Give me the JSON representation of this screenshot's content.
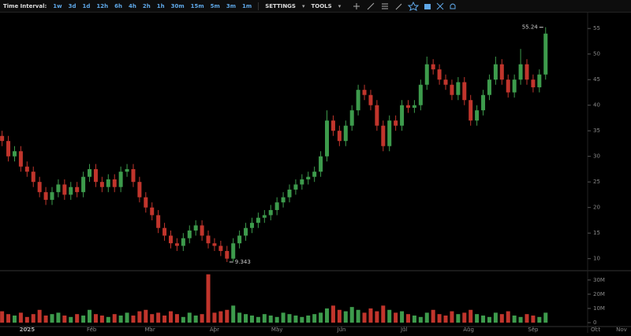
{
  "toolbar": {
    "label": "Time Interval:",
    "intervals": [
      "1w",
      "3d",
      "1d",
      "12h",
      "6h",
      "4h",
      "2h",
      "1h",
      "30m",
      "15m",
      "5m",
      "3m",
      "1m"
    ],
    "settings": "SETTINGS",
    "tools": "TOOLS"
  },
  "chart_data": {
    "type": "candlestick",
    "x": [
      -12,
      -9,
      -6,
      -3,
      0,
      3,
      6,
      9,
      12,
      15,
      18,
      21,
      24,
      27,
      30,
      33,
      36,
      39,
      42,
      45,
      48,
      51,
      54,
      57,
      60,
      63,
      66,
      69,
      72,
      75,
      78,
      81,
      84,
      87,
      90,
      93,
      96,
      99,
      102,
      105,
      108,
      111,
      114,
      117,
      120,
      123,
      126,
      129,
      132,
      135,
      138,
      141,
      144,
      147,
      150,
      153,
      156,
      159,
      162,
      165,
      168,
      171,
      174,
      177,
      180,
      183,
      186,
      189,
      192,
      195,
      198,
      201,
      204,
      207,
      210,
      213,
      216,
      219,
      222,
      225,
      228,
      231,
      234,
      237,
      240,
      243,
      246,
      249
    ],
    "open": [
      34,
      33,
      30,
      31,
      28,
      27,
      25,
      23,
      21.5,
      23,
      24.5,
      22.5,
      24,
      23,
      26,
      27.5,
      25,
      24,
      25.5,
      24,
      27,
      27.5,
      25,
      22,
      20,
      18.5,
      16,
      14.5,
      13,
      12.5,
      14,
      15.5,
      16.5,
      14.5,
      13,
      12.5,
      11.5,
      10,
      13,
      14.5,
      16,
      17,
      18,
      18.5,
      19.5,
      21,
      22,
      23.5,
      24.5,
      25.5,
      26,
      27,
      30,
      37,
      35,
      33,
      36,
      39,
      43,
      42,
      40,
      36,
      32,
      37,
      36,
      40,
      39.5,
      40,
      44,
      48,
      47,
      45,
      44,
      42,
      44.5,
      41,
      37,
      39,
      42,
      45,
      48,
      45,
      42.5,
      45,
      48,
      45,
      43.5,
      46
    ],
    "high": [
      35,
      34,
      32,
      32,
      29,
      28,
      26,
      24,
      24,
      25.5,
      25.5,
      25,
      25,
      27,
      28.5,
      28.5,
      26,
      26.5,
      26.5,
      28,
      28.5,
      28.5,
      26,
      23,
      21,
      19.5,
      17,
      15.5,
      14,
      15,
      16.5,
      17.5,
      17.5,
      15.5,
      14,
      13.5,
      12.5,
      14,
      15.5,
      17,
      18,
      19,
      19.5,
      20.5,
      22,
      23,
      24.5,
      25.5,
      26.5,
      27,
      28,
      31,
      39,
      38,
      36,
      37,
      40,
      44,
      44,
      43,
      41,
      37,
      38,
      38,
      41,
      41,
      41,
      45,
      49.5,
      49,
      48,
      46,
      45,
      45.5,
      45.5,
      42,
      40,
      43,
      46,
      49.5,
      49,
      46,
      46,
      51,
      49,
      46,
      47,
      55.24
    ],
    "low": [
      32,
      29,
      29,
      27,
      26,
      24,
      22,
      20.5,
      20.5,
      22,
      21.5,
      21.5,
      22,
      22,
      25,
      24,
      23,
      23,
      23,
      23,
      26,
      24,
      21,
      19,
      17.5,
      15,
      13.5,
      12,
      11.5,
      11.5,
      13,
      14.5,
      13.5,
      12,
      11.5,
      10.5,
      9.343,
      9.5,
      12,
      13.5,
      15,
      16,
      17,
      17.5,
      18.5,
      20,
      21,
      22.5,
      23.5,
      24.5,
      25,
      26,
      29,
      34,
      32,
      32,
      35,
      38,
      41,
      39,
      35,
      31,
      31,
      35,
      35,
      38.5,
      38.5,
      39,
      43,
      46,
      44,
      43,
      41,
      41,
      40,
      36,
      36,
      38,
      41,
      44,
      44,
      41.5,
      41.5,
      44,
      44,
      42.5,
      42.5,
      45
    ],
    "close": [
      33,
      30,
      31,
      28,
      27,
      25,
      23,
      21.5,
      23,
      24.5,
      22.5,
      24,
      23,
      26,
      27.5,
      25,
      24,
      25.5,
      24,
      27,
      27.5,
      25,
      22,
      20,
      18.5,
      16,
      14.5,
      13,
      12.5,
      14,
      15.5,
      16.5,
      14.5,
      13,
      12.5,
      11.5,
      10,
      13,
      14.5,
      16,
      17,
      18,
      18.5,
      19.5,
      21,
      22,
      23.5,
      24.5,
      25.5,
      26,
      27,
      30,
      37,
      35,
      33,
      36,
      39,
      43,
      42,
      40,
      36,
      32,
      37,
      36,
      40,
      39.5,
      40,
      44,
      48,
      47,
      45,
      44,
      42,
      44.5,
      41,
      37,
      39,
      42,
      45,
      48,
      45,
      42.5,
      45,
      48,
      45,
      43.5,
      46,
      54
    ],
    "volume": [
      8,
      6,
      5,
      7,
      4,
      6,
      9,
      5,
      6,
      7,
      5,
      4,
      6,
      5,
      9,
      6,
      5,
      4,
      6,
      5,
      7,
      5,
      8,
      9,
      6,
      7,
      5,
      8,
      6,
      4,
      7,
      5,
      6,
      34,
      7,
      8,
      9,
      12,
      7,
      6,
      5,
      4,
      6,
      5,
      4,
      7,
      6,
      5,
      4,
      5,
      6,
      7,
      10,
      12,
      9,
      8,
      11,
      9,
      7,
      10,
      8,
      12,
      9,
      7,
      8,
      6,
      5,
      4,
      7,
      9,
      6,
      5,
      8,
      6,
      7,
      9,
      6,
      5,
      4,
      7,
      6,
      8,
      5,
      4,
      6,
      5,
      4,
      7
    ],
    "up_color": "#3d9b4c",
    "down_color": "#c1352c",
    "xlim": [
      -13,
      290
    ],
    "xticks": [
      {
        "value": 0,
        "label": "2025"
      },
      {
        "value": 31,
        "label": "Feb"
      },
      {
        "value": 59,
        "label": "Mar"
      },
      {
        "value": 90,
        "label": "Apr"
      },
      {
        "value": 120,
        "label": "May"
      },
      {
        "value": 151,
        "label": "Jun"
      },
      {
        "value": 181,
        "label": "Jul"
      },
      {
        "value": 212,
        "label": "Aug"
      },
      {
        "value": 243,
        "label": "Sep"
      },
      {
        "value": 273,
        "label": "Oct"
      },
      {
        "value": 304,
        "label": "Nov"
      }
    ],
    "ylim": [
      7.8,
      57.8
    ],
    "yticks": [
      10,
      15,
      20,
      25,
      30,
      35,
      40,
      45,
      50,
      55
    ],
    "y2lim": [
      -2.2,
      36
    ],
    "y2ticks": [
      0,
      {
        "value": 10,
        "label": "10M"
      },
      {
        "value": 20,
        "label": "20M"
      },
      {
        "value": 30,
        "label": "30M"
      }
    ],
    "high_label": 55.24,
    "low_label": 9.343
  }
}
